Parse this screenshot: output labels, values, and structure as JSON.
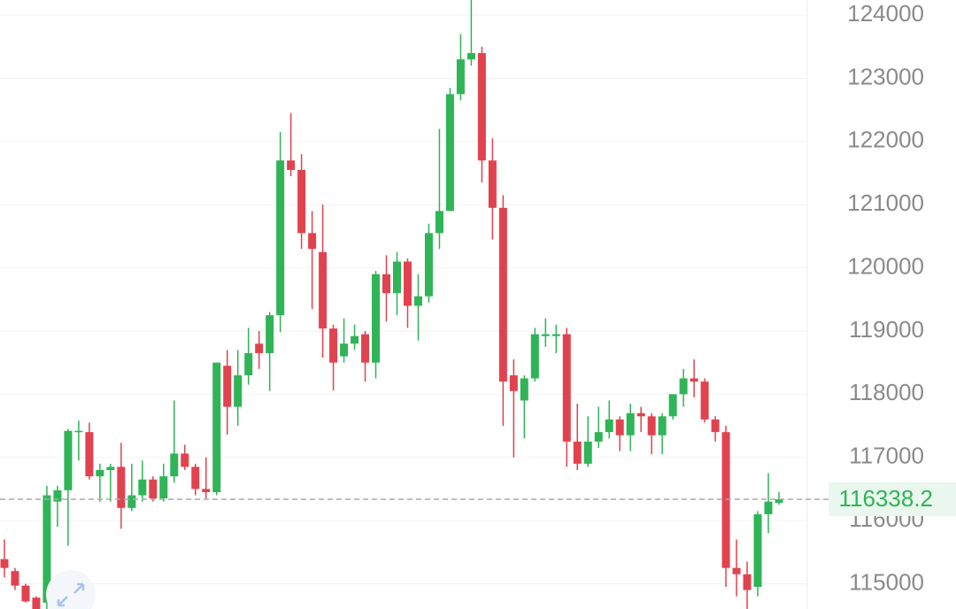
{
  "chart_data": {
    "type": "candlestick",
    "up_color": "#2fb457",
    "down_color": "#e0434f",
    "open": [
      115390,
      115200,
      114970,
      114780,
      114700,
      116300,
      116480,
      117400,
      117400,
      116700,
      116800,
      116850,
      116200,
      116400,
      116650,
      116350,
      116700,
      117060,
      116850,
      116500,
      116450,
      118450,
      117800,
      118300,
      118800,
      118650,
      119250,
      121700,
      121550,
      120550,
      120250,
      119040,
      118600,
      118800,
      118950,
      118500,
      119900,
      119600,
      120100,
      119400,
      119550,
      120550,
      120900,
      122750,
      123300,
      123400,
      121700,
      120950,
      118300,
      117900,
      118250,
      118920,
      118920,
      118950,
      117250,
      116900,
      117250,
      117400,
      117600,
      117350,
      117700,
      117650,
      117350,
      117650,
      118000,
      118250,
      118200,
      117600,
      117400,
      115250,
      115150,
      114950,
      116100,
      116280
    ],
    "high": [
      115700,
      115250,
      115000,
      114800,
      116550,
      116550,
      117450,
      117580,
      117550,
      116900,
      116900,
      117230,
      116900,
      116950,
      116700,
      116900,
      117900,
      117200,
      116900,
      117000,
      118500,
      118700,
      118700,
      119050,
      119000,
      119300,
      122150,
      122450,
      121800,
      120900,
      121000,
      119100,
      119200,
      119100,
      119000,
      119950,
      120200,
      120250,
      120150,
      119900,
      120700,
      122200,
      122850,
      123700,
      124240,
      123500,
      122050,
      121150,
      118550,
      118300,
      119050,
      119200,
      119100,
      119050,
      117850,
      117650,
      117800,
      117900,
      117650,
      117850,
      117800,
      117700,
      117700,
      118000,
      118400,
      118550,
      118250,
      117650,
      117500,
      115700,
      115350,
      116150,
      116750,
      116450
    ],
    "low": [
      115100,
      114900,
      114700,
      114600,
      114600,
      115900,
      115600,
      116950,
      116650,
      116300,
      116300,
      115870,
      116150,
      116300,
      116300,
      116300,
      116600,
      116800,
      116400,
      116350,
      116400,
      117360,
      117500,
      118150,
      118400,
      118050,
      118980,
      121450,
      120300,
      119350,
      118580,
      118060,
      118500,
      118700,
      118200,
      118250,
      119150,
      119250,
      119050,
      118850,
      119450,
      120300,
      120900,
      122650,
      123200,
      121350,
      120450,
      117500,
      117000,
      117300,
      118200,
      118750,
      118650,
      116850,
      116800,
      116850,
      117150,
      117300,
      117100,
      117100,
      117400,
      117050,
      117050,
      117600,
      117800,
      117950,
      117550,
      117250,
      114950,
      114800,
      114600,
      114800,
      115800,
      116250
    ],
    "close": [
      115250,
      114970,
      114720,
      114600,
      116400,
      116480,
      117420,
      117420,
      116700,
      116800,
      116850,
      116200,
      116400,
      116650,
      116350,
      116700,
      117060,
      116850,
      116500,
      116450,
      118500,
      117800,
      118300,
      118650,
      118650,
      119250,
      121700,
      121550,
      120550,
      120300,
      119040,
      118500,
      118800,
      118920,
      118500,
      119900,
      119600,
      120100,
      119400,
      119550,
      120550,
      120900,
      122750,
      123300,
      123400,
      121700,
      120950,
      118200,
      118050,
      118250,
      118950,
      118950,
      118950,
      117250,
      116900,
      117250,
      117400,
      117600,
      117350,
      117700,
      117650,
      117350,
      117650,
      118000,
      118250,
      118200,
      117600,
      117400,
      115250,
      115150,
      114900,
      116100,
      116300,
      116338.2
    ],
    "ylim": [
      114600,
      124240
    ],
    "yticks": [
      115000,
      116000,
      117000,
      118000,
      119000,
      120000,
      121000,
      122000,
      123000,
      124000
    ],
    "last_price": 116338.2,
    "last_price_color": "#2fb457",
    "grid": true
  }
}
